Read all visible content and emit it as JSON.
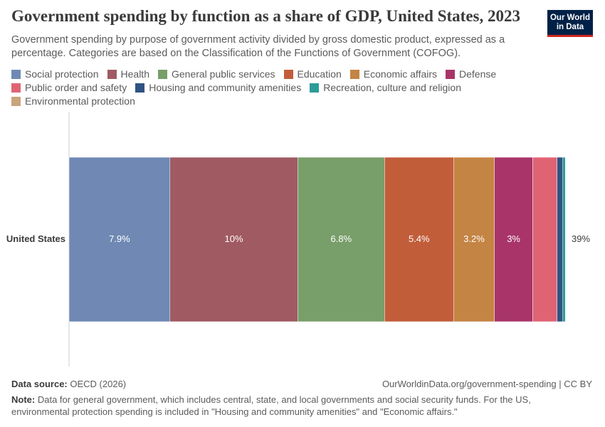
{
  "chart_data": {
    "type": "stacked-bar-horizontal",
    "title": "Government spending by function as a share of GDP, United States, 2023",
    "subtitle": "Government spending by purpose of government activity divided by gross domestic product, expressed as a percentage. Categories are based on the Classification of the Functions of Government (COFOG).",
    "logo_lines": [
      "Our World",
      "in Data"
    ],
    "categories": [
      "United States"
    ],
    "series": [
      {
        "name": "Social protection",
        "color": "#6f89b4",
        "values": [
          7.9
        ],
        "value_labels": [
          "7.9%"
        ]
      },
      {
        "name": "Health",
        "color": "#a05a62",
        "values": [
          10
        ],
        "value_labels": [
          "10%"
        ]
      },
      {
        "name": "General public services",
        "color": "#789e69",
        "values": [
          6.8
        ],
        "value_labels": [
          "6.8%"
        ]
      },
      {
        "name": "Education",
        "color": "#c25d3a",
        "values": [
          5.4
        ],
        "value_labels": [
          "5.4%"
        ]
      },
      {
        "name": "Economic affairs",
        "color": "#c48444",
        "values": [
          3.2
        ],
        "value_labels": [
          "3.2%"
        ]
      },
      {
        "name": "Defense",
        "color": "#a8346a",
        "values": [
          3
        ],
        "value_labels": [
          "3%"
        ]
      },
      {
        "name": "Public order and safety",
        "color": "#e06374",
        "values": [
          1.9
        ]
      },
      {
        "name": "Housing and community amenities",
        "color": "#2f5383",
        "values": [
          0.45
        ]
      },
      {
        "name": "Recreation, culture and religion",
        "color": "#2c9c98",
        "values": [
          0.2
        ]
      },
      {
        "name": "Environmental protection",
        "color": "#c9a47c",
        "values": [
          0
        ]
      }
    ],
    "total": 39,
    "total_label": "39%",
    "source_label": "Data source:",
    "source": "OECD (2026)",
    "url": "OurWorldinData.org/government-spending | CC BY",
    "note_label": "Note:",
    "note": "Data for general government, which includes central, state, and local governments and social security funds. For the US, environmental protection spending is included in \"Housing and community amenities\" and \"Economic affairs.\""
  }
}
